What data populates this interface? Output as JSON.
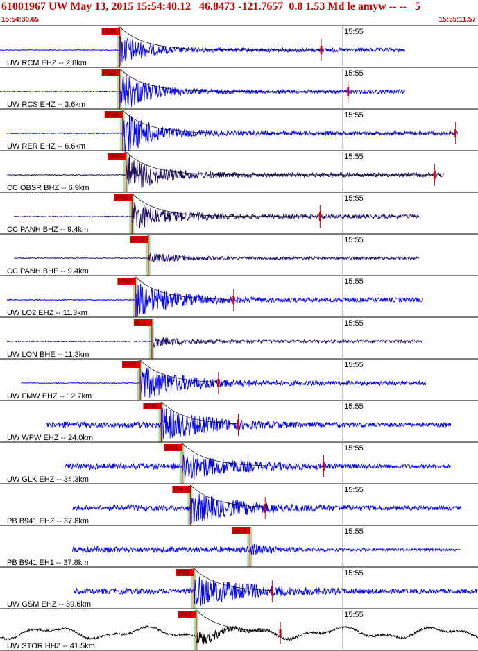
{
  "header": {
    "title": "61001967 UW May 13, 2015 15:54:40.12   46.8473 -121.7657  0.8 1.53 Md le amyw -- --   5",
    "time_start": "15:54:30.65",
    "time_end": "15:55:11.57"
  },
  "chart_data": {
    "type": "seismogram",
    "title": "61001967 UW May 13, 2015 15:54:40.12   46.8473 -121.7657  0.8 1.53 Md le amyw -- --   5",
    "time_range": [
      "15:54:30.65",
      "15:55:11.57"
    ],
    "time_range_seconds": [
      0,
      40.92
    ],
    "tick_label": "15:55",
    "tick_time_s": 29.35,
    "origin_time_s": 9.47,
    "trace_end_s": 40.92,
    "colors": {
      "trace": "#0000ff",
      "bb_trace": "#000000",
      "pick": "#dd0000",
      "pick_window": "#a8dca8",
      "gridline": "#000000"
    },
    "traces": [
      {
        "label": "UW RCM EHZ -- 2.8km",
        "dist_km": 2.8,
        "pick": "iPd0",
        "pick_time_s": 10.25,
        "start_s": 0,
        "end_s": 34.7,
        "amp": 1.0,
        "end_pick_s": 27.5,
        "color": "#0000ff"
      },
      {
        "label": "UW RCS EHZ -- 3.6km",
        "dist_km": 3.6,
        "pick": "iPd0",
        "pick_time_s": 10.25,
        "start_s": 0,
        "end_s": 34.7,
        "amp": 1.3,
        "end_pick_s": 29.8,
        "color": "#0000ff"
      },
      {
        "label": "UW RER EHZ -- 6.6km",
        "dist_km": 6.6,
        "pick": "iPd0",
        "pick_time_s": 10.5,
        "start_s": 0.6,
        "end_s": 39.2,
        "amp": 1.3,
        "end_pick_s": 39.0,
        "color": "#0000ff"
      },
      {
        "label": "CC OBSR BHZ -- 6.9km",
        "dist_km": 6.9,
        "pick": "iPd0",
        "pick_time_s": 10.8,
        "start_s": 0.6,
        "end_s": 38.0,
        "amp": 1.1,
        "end_pick_s": 37.2,
        "color": "#1a0f66"
      },
      {
        "label": "CC PANH BHZ -- 9.4km",
        "dist_km": 9.4,
        "pick": "iPd0",
        "pick_time_s": 11.3,
        "start_s": 1.2,
        "end_s": 35.9,
        "amp": 0.8,
        "end_pick_s": 27.4,
        "color": "#1a0f66"
      },
      {
        "label": "CC PANH BHE -- 9.4km",
        "dist_km": 9.4,
        "pick": "eS 2",
        "pick_time_s": 12.7,
        "start_s": 1.2,
        "end_s": 35.9,
        "amp": 0.7,
        "end_pick_s": null,
        "color": "#1a0f66"
      },
      {
        "label": "UW LO2 EHZ -- 11.3km",
        "dist_km": 11.3,
        "pick": "iPd0",
        "pick_time_s": 11.6,
        "start_s": 0.6,
        "end_s": 36.2,
        "amp": 0.9,
        "end_pick_s": 20.0,
        "color": "#0000ff"
      },
      {
        "label": "UW LON BHE -- 11.3km",
        "dist_km": 11.3,
        "pick": "iS 1",
        "pick_time_s": 13.0,
        "start_s": 0.6,
        "end_s": 36.2,
        "amp": 0.7,
        "end_pick_s": null,
        "color": "#1a0f66"
      },
      {
        "label": "UW FMW EHZ -- 12.7km",
        "dist_km": 12.7,
        "pick": "iPd0",
        "pick_time_s": 12.0,
        "start_s": 1.8,
        "end_s": 36.5,
        "amp": 0.9,
        "end_pick_s": 18.7,
        "color": "#0000ff"
      },
      {
        "label": "UW WPW EHZ -- 24.0km",
        "dist_km": 24.0,
        "pick": "iPd0",
        "pick_time_s": 13.8,
        "start_s": 4.0,
        "end_s": 38.6,
        "amp": 0.9,
        "end_pick_s": 20.4,
        "color": "#0000ff"
      },
      {
        "label": "UW GLK EHZ -- 34.3km",
        "dist_km": 34.3,
        "pick": "iPd1",
        "pick_time_s": 15.6,
        "start_s": 5.6,
        "end_s": 38.6,
        "amp": 0.8,
        "end_pick_s": 27.7,
        "color": "#0000ff"
      },
      {
        "label": "PB B941 EHZ -- 37.8km",
        "dist_km": 37.8,
        "pick": "iPd 1",
        "pick_time_s": 16.3,
        "start_s": 6.2,
        "end_s": 39.5,
        "amp": 0.8,
        "end_pick_s": 22.7,
        "color": "#0000ff"
      },
      {
        "label": "PB B941 EH1 -- 37.8km",
        "dist_km": 37.8,
        "pick": "eS 2",
        "pick_time_s": 21.4,
        "start_s": 6.2,
        "end_s": 39.5,
        "amp": 0.8,
        "end_pick_s": null,
        "color": "#0000ff"
      },
      {
        "label": "UW GSM EHZ -- 39.6km",
        "dist_km": 39.6,
        "pick": "iPd1",
        "pick_time_s": 16.6,
        "start_s": 6.3,
        "end_s": 40.92,
        "amp": 0.8,
        "end_pick_s": 23.3,
        "color": "#0000ff"
      },
      {
        "label": "UW STOR HHZ -- 41.5km",
        "dist_km": 41.5,
        "pick": "iPd1",
        "pick_time_s": 16.8,
        "start_s": 0,
        "end_s": 40.92,
        "amp": 0.8,
        "end_pick_s": 24.0,
        "color": "#000000"
      }
    ]
  }
}
